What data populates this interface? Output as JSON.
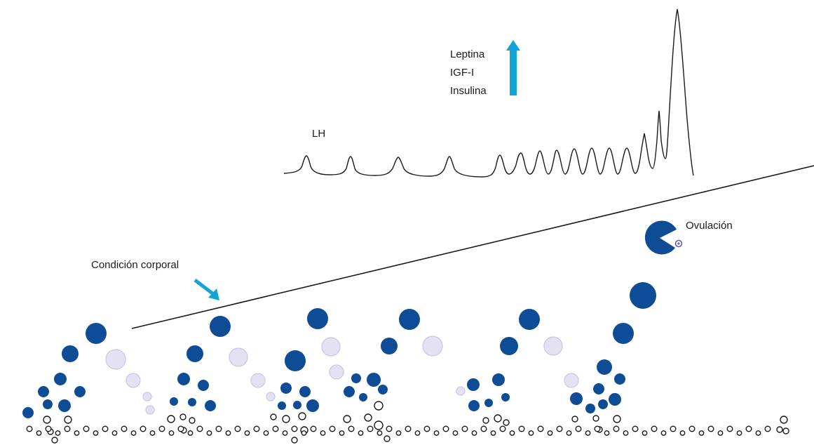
{
  "labels": {
    "lh": "LH",
    "hormone_1": "Leptina",
    "hormone_2": "IGF-I",
    "hormone_3": "Insulina",
    "ovulation": "Ovulación",
    "body_condition": "Condición corporal"
  },
  "icons": {
    "hormone_increase": "up-arrow-icon",
    "body_condition_pointer": "diagonal-arrow-icon",
    "ovulating_follicle": "pacman-follicle-icon"
  },
  "colors": {
    "dominant_follicle": "#0e4c96",
    "atretic_follicle": "#e3e1f2",
    "atretic_follicle_stroke": "#c9c6e2",
    "arrow_accent": "#12a4d6",
    "oocyte": "#6a5aa8",
    "line": "#1a1a1a"
  }
}
